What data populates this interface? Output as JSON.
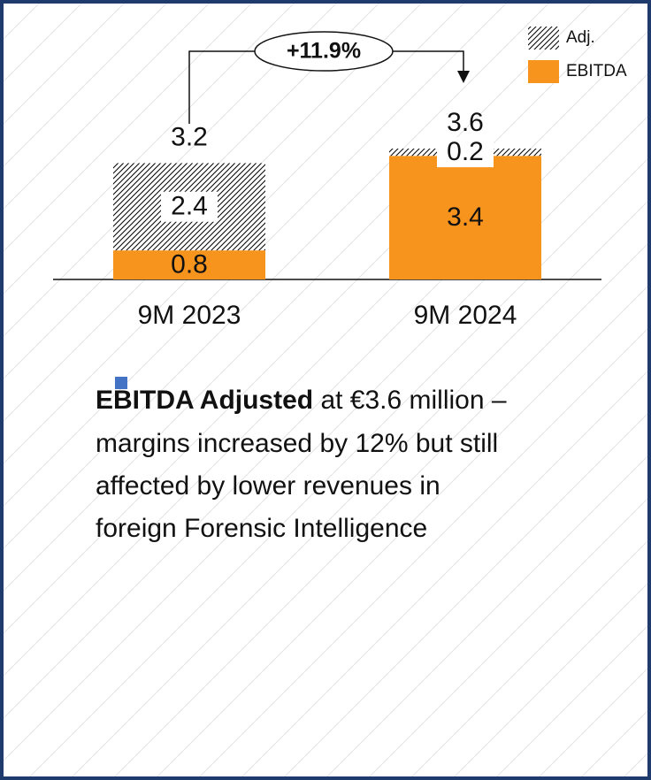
{
  "chart_data": {
    "type": "stacked_bar",
    "categories": [
      "9M 2023",
      "9M 2024"
    ],
    "series": [
      {
        "name": "EBITDA",
        "color": "#f7941d",
        "values": [
          0.8,
          3.4
        ]
      },
      {
        "name": "Adj.",
        "color": "#000000",
        "hatch": true,
        "values": [
          2.4,
          0.2
        ]
      }
    ],
    "totals": [
      3.2,
      3.6
    ],
    "annotation": "+11.9%",
    "bullet": {
      "bold": "EBITDA Adjusted",
      "lines": [
        " at €3.6 million –",
        "margins increased by 12% but still",
        "affected by lower revenues in",
        "foreign Forensic Intelligence"
      ]
    }
  }
}
